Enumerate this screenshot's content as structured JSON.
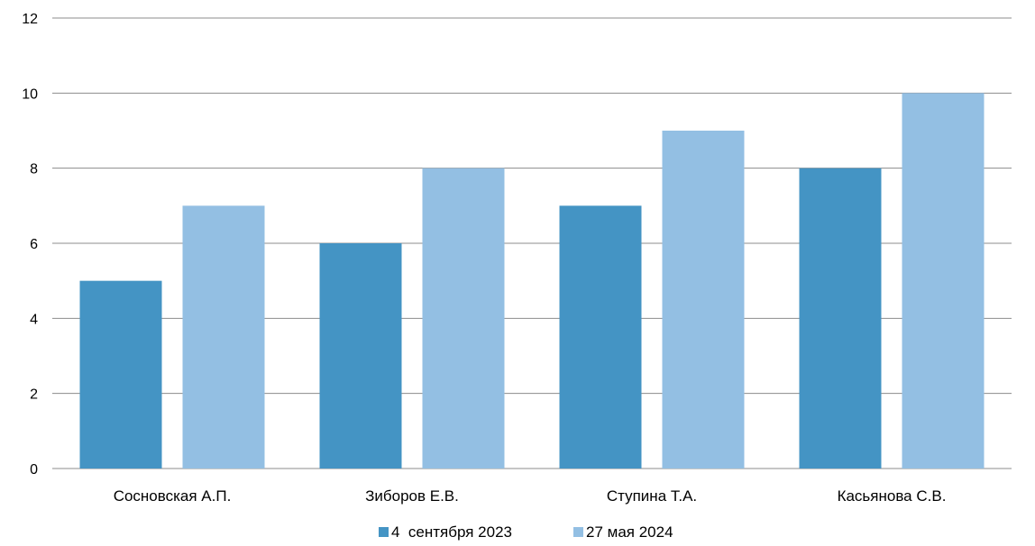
{
  "chart_data": {
    "type": "bar",
    "categories": [
      "Сосновская А.П.",
      "Зиборов Е.В.",
      "Ступина Т.А.",
      "Касьянова С.В."
    ],
    "series": [
      {
        "name": "4  сентября 2023",
        "values": [
          5,
          6,
          7,
          8
        ],
        "color": "#4494C4"
      },
      {
        "name": "27 мая 2024",
        "values": [
          7,
          8,
          9,
          10
        ],
        "color": "#93BFE3"
      }
    ],
    "ylim": [
      0,
      12
    ],
    "yticks": [
      0,
      2,
      4,
      6,
      8,
      10,
      12
    ],
    "grid": true,
    "legend_position": "bottom-center",
    "gridline_color": "#8C8C8C"
  }
}
